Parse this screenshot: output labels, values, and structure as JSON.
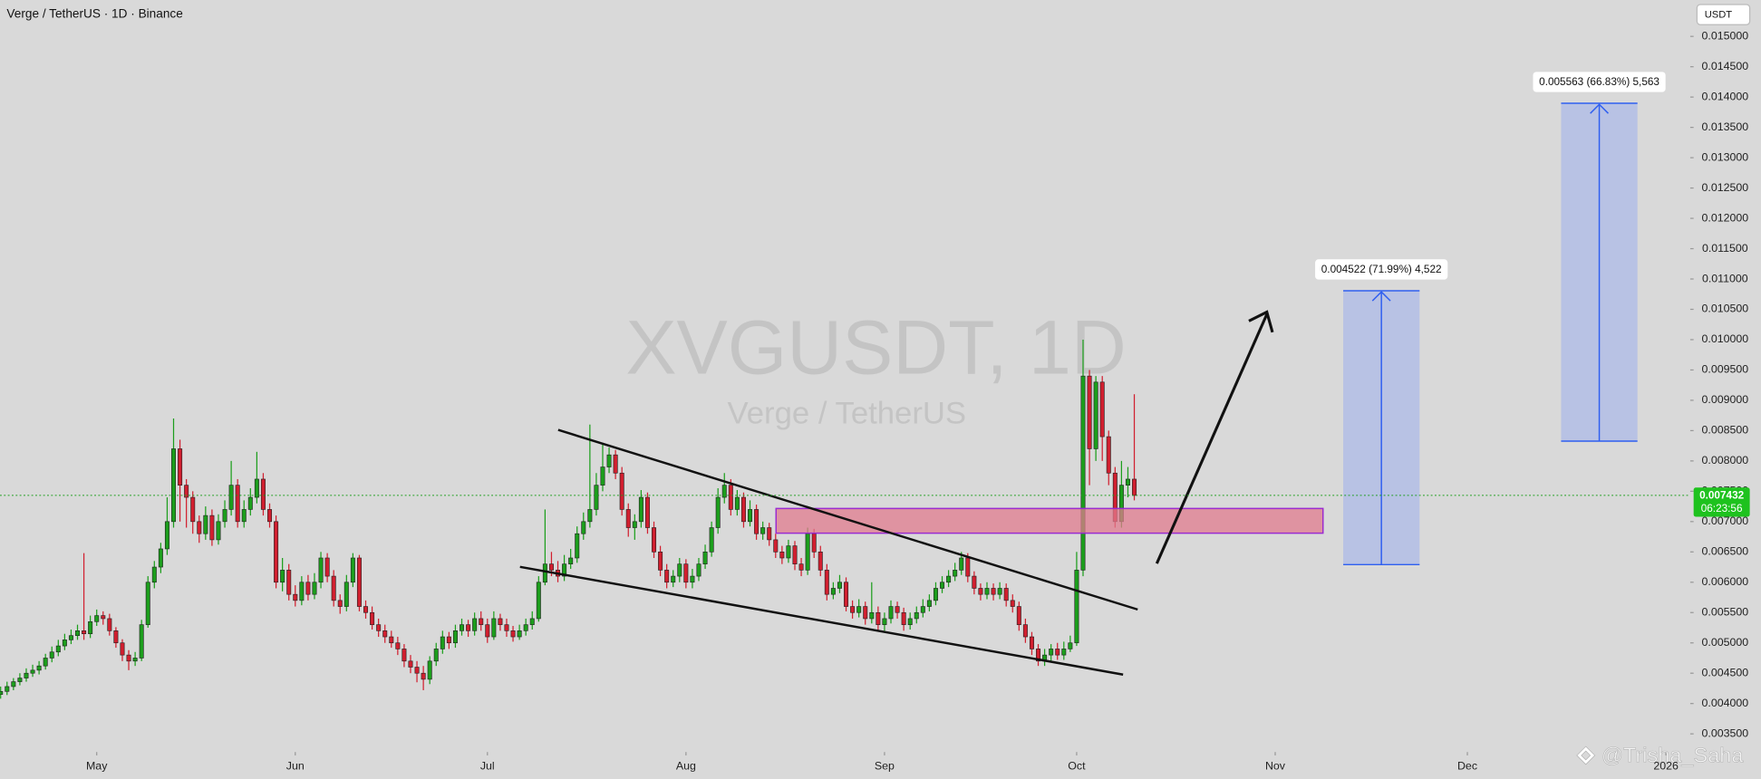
{
  "chart_data": {
    "type": "candlestick",
    "title": "Verge / TetherUS · 1D · Binance",
    "currency": "USDT",
    "watermark": {
      "symbol": "XVGUSDT, 1D",
      "name": "Verge / TetherUS"
    },
    "signature": "@Trisha_Saha",
    "grid": false,
    "colors": {
      "up": "#1c9e1c",
      "down": "#d11f2f",
      "line": "#222222"
    },
    "xlim": [
      -0.1,
      263.8
    ],
    "xticks": [
      {
        "value": 15,
        "label": "May"
      },
      {
        "value": 46,
        "label": "Jun"
      },
      {
        "value": 76,
        "label": "Jul"
      },
      {
        "value": 107,
        "label": "Aug"
      },
      {
        "value": 138,
        "label": "Sep"
      },
      {
        "value": 168,
        "label": "Oct"
      },
      {
        "value": 199,
        "label": "Nov"
      },
      {
        "value": 229,
        "label": "Dec"
      },
      {
        "value": 260,
        "label": "2026"
      }
    ],
    "ylim": [
      0.0032,
      0.0156
    ],
    "yticks": [
      {
        "value": 0.0035,
        "label": "0.003500"
      },
      {
        "value": 0.004,
        "label": "0.004000"
      },
      {
        "value": 0.0045,
        "label": "0.004500"
      },
      {
        "value": 0.005,
        "label": "0.005000"
      },
      {
        "value": 0.0055,
        "label": "0.005500"
      },
      {
        "value": 0.006,
        "label": "0.006000"
      },
      {
        "value": 0.0065,
        "label": "0.006500"
      },
      {
        "value": 0.007,
        "label": "0.007000"
      },
      {
        "value": 0.0075,
        "label": "0.007500"
      },
      {
        "value": 0.008,
        "label": "0.008000"
      },
      {
        "value": 0.0085,
        "label": "0.008500"
      },
      {
        "value": 0.009,
        "label": "0.009000"
      },
      {
        "value": 0.0095,
        "label": "0.009500"
      },
      {
        "value": 0.01,
        "label": "0.010000"
      },
      {
        "value": 0.0105,
        "label": "0.010500"
      },
      {
        "value": 0.011,
        "label": "0.011000"
      },
      {
        "value": 0.0115,
        "label": "0.011500"
      },
      {
        "value": 0.012,
        "label": "0.012000"
      },
      {
        "value": 0.0125,
        "label": "0.012500"
      },
      {
        "value": 0.013,
        "label": "0.013000"
      },
      {
        "value": 0.0135,
        "label": "0.013500"
      },
      {
        "value": 0.014,
        "label": "0.014000"
      },
      {
        "value": 0.0145,
        "label": "0.014500"
      },
      {
        "value": 0.015,
        "label": "0.015000"
      }
    ],
    "last_price": {
      "value": 0.007432,
      "countdown": "06:23:56"
    },
    "annotations": [
      "0.004522 (71.99%) 4,522",
      "0.005563 (66.83%) 5,563"
    ],
    "ohlc": [
      [
        0.00415,
        0.00428,
        0.00408,
        0.0042
      ],
      [
        0.0042,
        0.00436,
        0.00414,
        0.00428
      ],
      [
        0.00428,
        0.00442,
        0.00422,
        0.00436
      ],
      [
        0.00436,
        0.0045,
        0.0043,
        0.00442
      ],
      [
        0.00442,
        0.00458,
        0.00436,
        0.0045
      ],
      [
        0.0045,
        0.00464,
        0.00444,
        0.00455
      ],
      [
        0.00455,
        0.0047,
        0.00448,
        0.00462
      ],
      [
        0.00462,
        0.00482,
        0.00456,
        0.00475
      ],
      [
        0.00475,
        0.00494,
        0.00468,
        0.00485
      ],
      [
        0.00485,
        0.00505,
        0.00478,
        0.00495
      ],
      [
        0.00495,
        0.00515,
        0.00488,
        0.00505
      ],
      [
        0.00505,
        0.00522,
        0.00498,
        0.00512
      ],
      [
        0.00512,
        0.0053,
        0.00505,
        0.0052
      ],
      [
        0.0052,
        0.00648,
        0.00505,
        0.00515
      ],
      [
        0.00515,
        0.00545,
        0.00508,
        0.00535
      ],
      [
        0.00535,
        0.00555,
        0.00528,
        0.00545
      ],
      [
        0.00545,
        0.00552,
        0.0053,
        0.0054
      ],
      [
        0.0054,
        0.00548,
        0.00512,
        0.0052
      ],
      [
        0.0052,
        0.00526,
        0.00492,
        0.005
      ],
      [
        0.005,
        0.00506,
        0.0047,
        0.0048
      ],
      [
        0.0048,
        0.00488,
        0.00455,
        0.0047
      ],
      [
        0.0047,
        0.00485,
        0.00462,
        0.00475
      ],
      [
        0.00475,
        0.00538,
        0.0047,
        0.0053
      ],
      [
        0.0053,
        0.0061,
        0.00525,
        0.006
      ],
      [
        0.006,
        0.00635,
        0.0059,
        0.00625
      ],
      [
        0.00625,
        0.00665,
        0.00615,
        0.00655
      ],
      [
        0.00655,
        0.0074,
        0.00645,
        0.007
      ],
      [
        0.007,
        0.0087,
        0.0069,
        0.0082
      ],
      [
        0.0082,
        0.00835,
        0.007,
        0.0076
      ],
      [
        0.0076,
        0.0077,
        0.0069,
        0.0074
      ],
      [
        0.0074,
        0.0075,
        0.0068,
        0.007
      ],
      [
        0.007,
        0.0071,
        0.00665,
        0.0068
      ],
      [
        0.0068,
        0.00725,
        0.0067,
        0.0071
      ],
      [
        0.0071,
        0.0072,
        0.0066,
        0.0067
      ],
      [
        0.0067,
        0.00712,
        0.00662,
        0.007
      ],
      [
        0.007,
        0.00735,
        0.0069,
        0.0072
      ],
      [
        0.0072,
        0.008,
        0.0071,
        0.0076
      ],
      [
        0.0076,
        0.0077,
        0.0069,
        0.007
      ],
      [
        0.007,
        0.00735,
        0.0069,
        0.0072
      ],
      [
        0.0072,
        0.00755,
        0.0071,
        0.0074
      ],
      [
        0.0074,
        0.00815,
        0.0073,
        0.0077
      ],
      [
        0.0077,
        0.0078,
        0.0071,
        0.0072
      ],
      [
        0.0072,
        0.0073,
        0.0069,
        0.007
      ],
      [
        0.007,
        0.0071,
        0.0059,
        0.006
      ],
      [
        0.006,
        0.0064,
        0.00585,
        0.0062
      ],
      [
        0.0062,
        0.0063,
        0.0057,
        0.0058
      ],
      [
        0.0058,
        0.00595,
        0.0056,
        0.0057
      ],
      [
        0.0057,
        0.0061,
        0.00562,
        0.006
      ],
      [
        0.006,
        0.00612,
        0.0057,
        0.0058
      ],
      [
        0.0058,
        0.00615,
        0.00572,
        0.006
      ],
      [
        0.006,
        0.0065,
        0.0059,
        0.0064
      ],
      [
        0.0064,
        0.00648,
        0.006,
        0.0061
      ],
      [
        0.0061,
        0.0062,
        0.0056,
        0.0057
      ],
      [
        0.0057,
        0.0058,
        0.00548,
        0.0056
      ],
      [
        0.0056,
        0.00612,
        0.00552,
        0.006
      ],
      [
        0.006,
        0.00648,
        0.00592,
        0.0064
      ],
      [
        0.0064,
        0.00645,
        0.00552,
        0.0056
      ],
      [
        0.0056,
        0.0057,
        0.0054,
        0.0055
      ],
      [
        0.0055,
        0.0056,
        0.00522,
        0.0053
      ],
      [
        0.0053,
        0.0054,
        0.0051,
        0.0052
      ],
      [
        0.0052,
        0.0053,
        0.005,
        0.0051
      ],
      [
        0.0051,
        0.0052,
        0.00492,
        0.005
      ],
      [
        0.005,
        0.0051,
        0.0048,
        0.0049
      ],
      [
        0.0049,
        0.00498,
        0.0046,
        0.0047
      ],
      [
        0.0047,
        0.0048,
        0.0045,
        0.0046
      ],
      [
        0.0046,
        0.0047,
        0.00435,
        0.0045
      ],
      [
        0.0045,
        0.00462,
        0.00422,
        0.0044
      ],
      [
        0.0044,
        0.00478,
        0.00432,
        0.0047
      ],
      [
        0.0047,
        0.005,
        0.00462,
        0.0049
      ],
      [
        0.0049,
        0.0052,
        0.00482,
        0.0051
      ],
      [
        0.0051,
        0.00518,
        0.0049,
        0.005
      ],
      [
        0.005,
        0.0053,
        0.00492,
        0.0052
      ],
      [
        0.0052,
        0.0054,
        0.00512,
        0.0053
      ],
      [
        0.0053,
        0.00538,
        0.0051,
        0.0052
      ],
      [
        0.0052,
        0.0055,
        0.00512,
        0.0054
      ],
      [
        0.0054,
        0.00552,
        0.0052,
        0.0053
      ],
      [
        0.0053,
        0.0054,
        0.005,
        0.0051
      ],
      [
        0.0051,
        0.00552,
        0.00505,
        0.0054
      ],
      [
        0.0054,
        0.00548,
        0.0052,
        0.0053
      ],
      [
        0.0053,
        0.0054,
        0.0051,
        0.0052
      ],
      [
        0.0052,
        0.00528,
        0.00502,
        0.0051
      ],
      [
        0.0051,
        0.0053,
        0.00505,
        0.0052
      ],
      [
        0.0052,
        0.0054,
        0.00512,
        0.0053
      ],
      [
        0.0053,
        0.00552,
        0.00522,
        0.0054
      ],
      [
        0.0054,
        0.0061,
        0.00535,
        0.006
      ],
      [
        0.006,
        0.0072,
        0.00595,
        0.0063
      ],
      [
        0.0063,
        0.0065,
        0.0061,
        0.0062
      ],
      [
        0.0062,
        0.00635,
        0.006,
        0.0061
      ],
      [
        0.0061,
        0.00645,
        0.00602,
        0.0063
      ],
      [
        0.0063,
        0.00655,
        0.00622,
        0.0064
      ],
      [
        0.0064,
        0.00692,
        0.00632,
        0.0068
      ],
      [
        0.0068,
        0.00715,
        0.0067,
        0.007
      ],
      [
        0.007,
        0.0086,
        0.0069,
        0.0072
      ],
      [
        0.0072,
        0.0078,
        0.0071,
        0.0076
      ],
      [
        0.0076,
        0.0083,
        0.0075,
        0.0079
      ],
      [
        0.0079,
        0.00822,
        0.0078,
        0.0081
      ],
      [
        0.0081,
        0.00818,
        0.0077,
        0.0078
      ],
      [
        0.0078,
        0.0079,
        0.0071,
        0.0072
      ],
      [
        0.0072,
        0.0073,
        0.00675,
        0.0069
      ],
      [
        0.0069,
        0.00712,
        0.0067,
        0.007
      ],
      [
        0.007,
        0.00752,
        0.0069,
        0.0074
      ],
      [
        0.0074,
        0.00748,
        0.0068,
        0.0069
      ],
      [
        0.0069,
        0.007,
        0.0064,
        0.0065
      ],
      [
        0.0065,
        0.0066,
        0.0061,
        0.0062
      ],
      [
        0.0062,
        0.0063,
        0.0059,
        0.006
      ],
      [
        0.006,
        0.0062,
        0.00592,
        0.0061
      ],
      [
        0.0061,
        0.0064,
        0.006,
        0.0063
      ],
      [
        0.0063,
        0.00638,
        0.0059,
        0.006
      ],
      [
        0.006,
        0.00622,
        0.0059,
        0.0061
      ],
      [
        0.0061,
        0.0064,
        0.00602,
        0.0063
      ],
      [
        0.0063,
        0.00662,
        0.00622,
        0.0065
      ],
      [
        0.0065,
        0.007,
        0.00642,
        0.0069
      ],
      [
        0.0069,
        0.00755,
        0.0068,
        0.0074
      ],
      [
        0.0074,
        0.0078,
        0.0073,
        0.0076
      ],
      [
        0.0076,
        0.0077,
        0.0071,
        0.0072
      ],
      [
        0.0072,
        0.00752,
        0.0071,
        0.0074
      ],
      [
        0.0074,
        0.00748,
        0.0069,
        0.007
      ],
      [
        0.007,
        0.00735,
        0.00692,
        0.0072
      ],
      [
        0.0072,
        0.00728,
        0.0067,
        0.0068
      ],
      [
        0.0068,
        0.007,
        0.0067,
        0.0069
      ],
      [
        0.0069,
        0.00698,
        0.0066,
        0.0067
      ],
      [
        0.0067,
        0.0068,
        0.0064,
        0.0065
      ],
      [
        0.0065,
        0.0066,
        0.0063,
        0.0064
      ],
      [
        0.0064,
        0.0067,
        0.00632,
        0.0066
      ],
      [
        0.0066,
        0.00668,
        0.0062,
        0.0063
      ],
      [
        0.0063,
        0.0064,
        0.0061,
        0.0062
      ],
      [
        0.0062,
        0.0069,
        0.00612,
        0.0068
      ],
      [
        0.0068,
        0.00688,
        0.0064,
        0.0065
      ],
      [
        0.0065,
        0.0066,
        0.0061,
        0.0062
      ],
      [
        0.0062,
        0.0063,
        0.0057,
        0.0058
      ],
      [
        0.0058,
        0.006,
        0.00572,
        0.0059
      ],
      [
        0.0059,
        0.00612,
        0.00582,
        0.006
      ],
      [
        0.006,
        0.00608,
        0.00552,
        0.0056
      ],
      [
        0.0056,
        0.0057,
        0.0054,
        0.0055
      ],
      [
        0.0055,
        0.00572,
        0.00542,
        0.0056
      ],
      [
        0.0056,
        0.00568,
        0.0053,
        0.0054
      ],
      [
        0.0054,
        0.006,
        0.00532,
        0.0055
      ],
      [
        0.0055,
        0.0056,
        0.0052,
        0.0053
      ],
      [
        0.0053,
        0.0055,
        0.0052,
        0.0054
      ],
      [
        0.0054,
        0.0057,
        0.00532,
        0.0056
      ],
      [
        0.0056,
        0.00568,
        0.0054,
        0.0055
      ],
      [
        0.0055,
        0.00558,
        0.0052,
        0.0053
      ],
      [
        0.0053,
        0.0055,
        0.00522,
        0.0054
      ],
      [
        0.0054,
        0.0056,
        0.00532,
        0.0055
      ],
      [
        0.0055,
        0.00572,
        0.00542,
        0.0056
      ],
      [
        0.0056,
        0.0058,
        0.00552,
        0.0057
      ],
      [
        0.0057,
        0.006,
        0.00562,
        0.0059
      ],
      [
        0.0059,
        0.0061,
        0.00582,
        0.006
      ],
      [
        0.006,
        0.0062,
        0.00592,
        0.0061
      ],
      [
        0.0061,
        0.00632,
        0.00602,
        0.0062
      ],
      [
        0.0062,
        0.0065,
        0.00612,
        0.0064
      ],
      [
        0.0064,
        0.00648,
        0.006,
        0.0061
      ],
      [
        0.0061,
        0.00618,
        0.0058,
        0.0059
      ],
      [
        0.0059,
        0.00598,
        0.0057,
        0.0058
      ],
      [
        0.0058,
        0.006,
        0.00572,
        0.0059
      ],
      [
        0.0059,
        0.00598,
        0.0057,
        0.0058
      ],
      [
        0.0058,
        0.006,
        0.00572,
        0.0059
      ],
      [
        0.0059,
        0.00598,
        0.0056,
        0.0057
      ],
      [
        0.0057,
        0.0058,
        0.0055,
        0.0056
      ],
      [
        0.0056,
        0.00568,
        0.0052,
        0.0053
      ],
      [
        0.0053,
        0.0054,
        0.005,
        0.0051
      ],
      [
        0.0051,
        0.00518,
        0.0048,
        0.0049
      ],
      [
        0.0049,
        0.00498,
        0.00462,
        0.0047
      ],
      [
        0.0047,
        0.0049,
        0.00462,
        0.0048
      ],
      [
        0.0048,
        0.00498,
        0.0047,
        0.0049
      ],
      [
        0.0049,
        0.005,
        0.00472,
        0.0048
      ],
      [
        0.0048,
        0.00502,
        0.00472,
        0.0049
      ],
      [
        0.0049,
        0.00512,
        0.00485,
        0.005
      ],
      [
        0.005,
        0.0065,
        0.00495,
        0.0062
      ],
      [
        0.0062,
        0.01,
        0.0061,
        0.0094
      ],
      [
        0.0094,
        0.0095,
        0.0076,
        0.0082
      ],
      [
        0.0082,
        0.0094,
        0.008,
        0.0093
      ],
      [
        0.0093,
        0.0094,
        0.008,
        0.0084
      ],
      [
        0.0084,
        0.0085,
        0.0076,
        0.0078
      ],
      [
        0.0078,
        0.0079,
        0.0069,
        0.007
      ],
      [
        0.007,
        0.008,
        0.0069,
        0.0076
      ],
      [
        0.0076,
        0.0079,
        0.0074,
        0.0077
      ],
      [
        0.0077,
        0.0091,
        0.00735,
        0.007432
      ]
    ]
  }
}
